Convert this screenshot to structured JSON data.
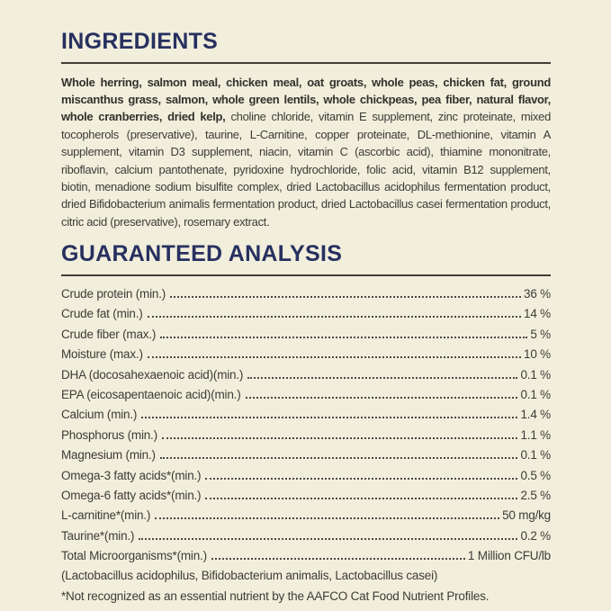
{
  "page": {
    "background_color": "#f1eedc",
    "heading_color": "#27305f",
    "text_color": "#3d3c36",
    "rule_color": "#3f3d35"
  },
  "ingredients": {
    "title": "INGREDIENTS",
    "main_bold": "Whole herring, salmon meal, chicken meal, oat groats, whole peas, chicken fat, ground miscanthus grass, salmon, whole green lentils, whole chickpeas, pea fiber, natural flavor, whole cranberries, dried kelp,",
    "rest": " choline chloride, vitamin E supplement, zinc proteinate, mixed tocopherols (preservative), taurine, L-Carnitine, copper proteinate, DL-methionine, vitamin A supplement, vitamin D3 supplement, niacin, vitamin C (ascorbic acid), thiamine mononitrate, riboflavin, calcium pantothenate, pyridoxine hydrochloride, folic acid, vitamin B12 supplement, biotin, menadione sodium bisulfite complex, dried Lactobacillus acidophilus fermentation product, dried Bifidobacterium animalis fermentation product, dried Lactobacillus casei fermentation product, citric acid (preservative), rosemary extract."
  },
  "analysis": {
    "title": "GUARANTEED ANALYSIS",
    "rows": [
      {
        "label": "Crude protein (min.)",
        "value": "36 %"
      },
      {
        "label": "Crude fat (min.)",
        "value": "14 %"
      },
      {
        "label": "Crude fiber (max.)",
        "value": "5 %"
      },
      {
        "label": "Moisture (max.)",
        "value": "10 %"
      },
      {
        "label": "DHA (docosahexaenoic acid)(min.)",
        "value": "0.1 %"
      },
      {
        "label": "EPA (eicosapentaenoic acid)(min.)",
        "value": "0.1 %"
      },
      {
        "label": "Calcium (min.)",
        "value": "1.4 %"
      },
      {
        "label": "Phosphorus (min.)",
        "value": "1.1 %"
      },
      {
        "label": "Magnesium (min.)",
        "value": "0.1 %"
      },
      {
        "label": "Omega-3 fatty acids*(min.)",
        "value": "0.5 %"
      },
      {
        "label": "Omega-6 fatty acids*(min.)",
        "value": "2.5 %"
      },
      {
        "label": "L-carnitine*(min.)",
        "value": "50 mg/kg"
      },
      {
        "label": "Taurine*(min.)",
        "value": "0.2 %"
      },
      {
        "label": "Total Microorganisms*(min.)",
        "value": "1 Million CFU/lb"
      }
    ],
    "microorganisms_detail": "(Lactobacillus acidophilus, Bifidobacterium animalis, Lactobacillus casei)",
    "footnote": "*Not recognized as an essential nutrient by the AAFCO Cat Food Nutrient Profiles."
  }
}
